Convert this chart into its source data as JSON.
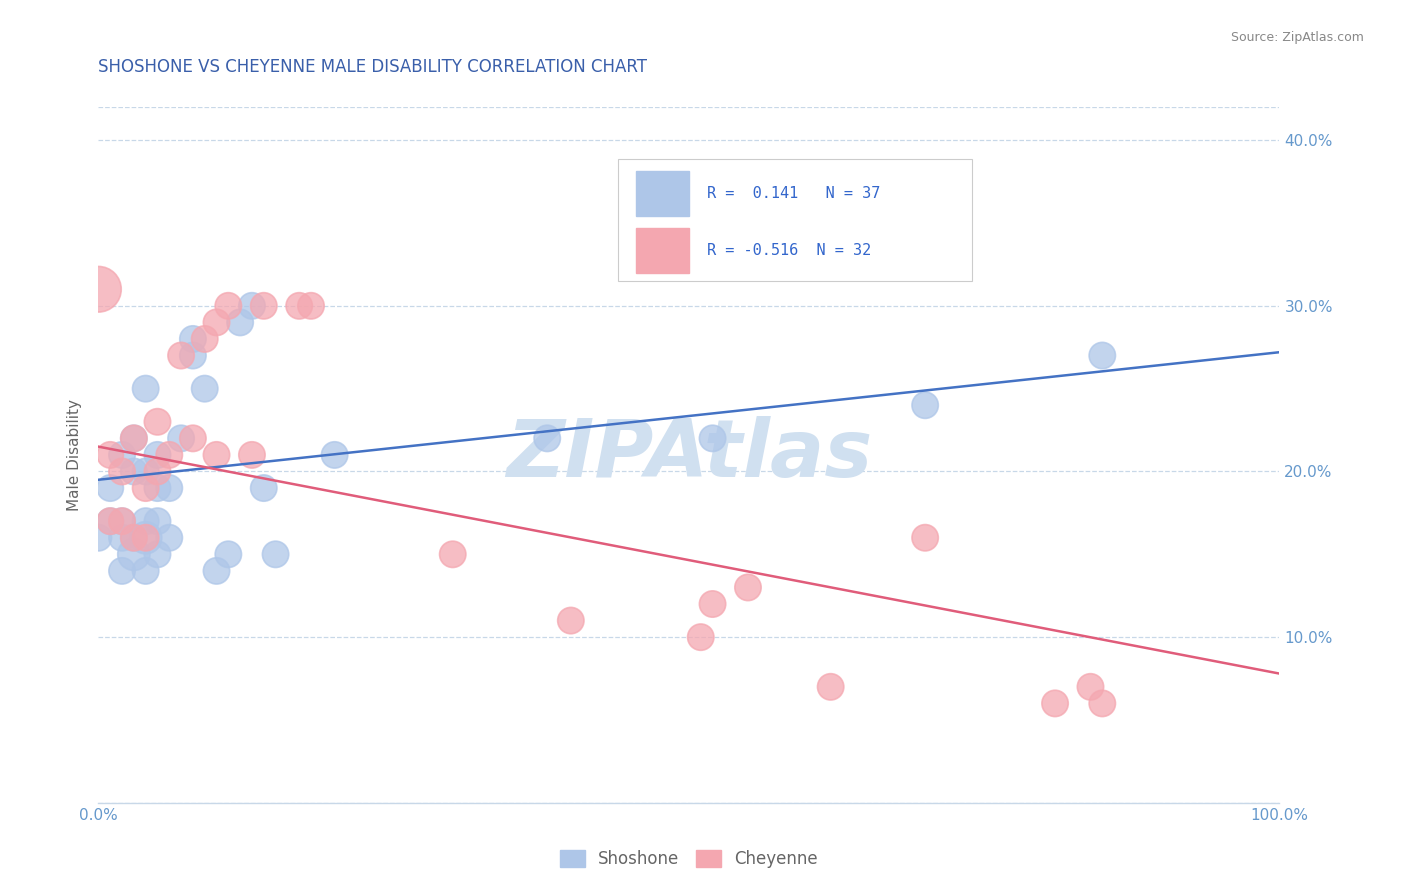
{
  "title": "SHOSHONE VS CHEYENNE MALE DISABILITY CORRELATION CHART",
  "source": "Source: ZipAtlas.com",
  "ylabel": "Male Disability",
  "watermark": "ZIPAtlas",
  "shoshone_color": "#aec6e8",
  "cheyenne_color": "#f4a7b0",
  "shoshone_line_color": "#4472c4",
  "cheyenne_line_color": "#e05c7a",
  "shoshone_R": 0.141,
  "shoshone_N": 37,
  "cheyenne_R": -0.516,
  "cheyenne_N": 32,
  "xlim": [
    0,
    1
  ],
  "ylim": [
    0,
    0.42
  ],
  "yticks": [
    0.0,
    0.1,
    0.2,
    0.3,
    0.4
  ],
  "yticklabels": [
    "",
    "10.0%",
    "20.0%",
    "30.0%",
    "40.0%"
  ],
  "shoshone_x": [
    0.0,
    0.01,
    0.01,
    0.02,
    0.02,
    0.02,
    0.02,
    0.03,
    0.03,
    0.03,
    0.03,
    0.04,
    0.04,
    0.04,
    0.04,
    0.04,
    0.05,
    0.05,
    0.05,
    0.05,
    0.06,
    0.06,
    0.07,
    0.08,
    0.08,
    0.09,
    0.1,
    0.11,
    0.12,
    0.13,
    0.14,
    0.15,
    0.2,
    0.38,
    0.52,
    0.7,
    0.85
  ],
  "shoshone_y": [
    0.16,
    0.17,
    0.19,
    0.14,
    0.16,
    0.17,
    0.21,
    0.15,
    0.16,
    0.2,
    0.22,
    0.14,
    0.16,
    0.17,
    0.2,
    0.25,
    0.15,
    0.17,
    0.19,
    0.21,
    0.16,
    0.19,
    0.22,
    0.27,
    0.28,
    0.25,
    0.14,
    0.15,
    0.29,
    0.3,
    0.19,
    0.15,
    0.21,
    0.22,
    0.22,
    0.24,
    0.27
  ],
  "shoshone_size": [
    20,
    20,
    20,
    20,
    20,
    20,
    20,
    30,
    20,
    20,
    20,
    20,
    30,
    20,
    20,
    20,
    20,
    20,
    20,
    20,
    20,
    20,
    20,
    20,
    20,
    20,
    20,
    20,
    20,
    20,
    20,
    20,
    20,
    20,
    20,
    20,
    20
  ],
  "cheyenne_x": [
    0.0,
    0.01,
    0.01,
    0.02,
    0.02,
    0.03,
    0.03,
    0.04,
    0.04,
    0.05,
    0.05,
    0.06,
    0.07,
    0.08,
    0.09,
    0.1,
    0.1,
    0.11,
    0.13,
    0.14,
    0.17,
    0.18,
    0.3,
    0.4,
    0.51,
    0.52,
    0.55,
    0.62,
    0.7,
    0.81,
    0.84,
    0.85
  ],
  "cheyenne_y": [
    0.31,
    0.17,
    0.21,
    0.17,
    0.2,
    0.16,
    0.22,
    0.16,
    0.19,
    0.2,
    0.23,
    0.21,
    0.27,
    0.22,
    0.28,
    0.21,
    0.29,
    0.3,
    0.21,
    0.3,
    0.3,
    0.3,
    0.15,
    0.11,
    0.1,
    0.12,
    0.13,
    0.07,
    0.16,
    0.06,
    0.07,
    0.06
  ],
  "cheyenne_size": [
    60,
    20,
    20,
    20,
    20,
    20,
    20,
    20,
    20,
    20,
    20,
    20,
    20,
    20,
    20,
    20,
    20,
    20,
    20,
    20,
    20,
    20,
    20,
    20,
    20,
    20,
    20,
    20,
    20,
    20,
    20,
    20
  ],
  "shoshone_line_y_start": 0.195,
  "shoshone_line_y_end": 0.272,
  "cheyenne_line_y_start": 0.215,
  "cheyenne_line_y_end": 0.078,
  "legend_shoshone_label": "Shoshone",
  "legend_cheyenne_label": "Cheyenne",
  "bg_color": "#ffffff",
  "grid_color": "#c8d8e8",
  "title_color": "#3a5faa",
  "source_color": "#888888",
  "axis_label_color": "#666666",
  "tick_color": "#6699cc",
  "legend_r_color": "#3366cc",
  "watermark_color": "#d0e0f0"
}
